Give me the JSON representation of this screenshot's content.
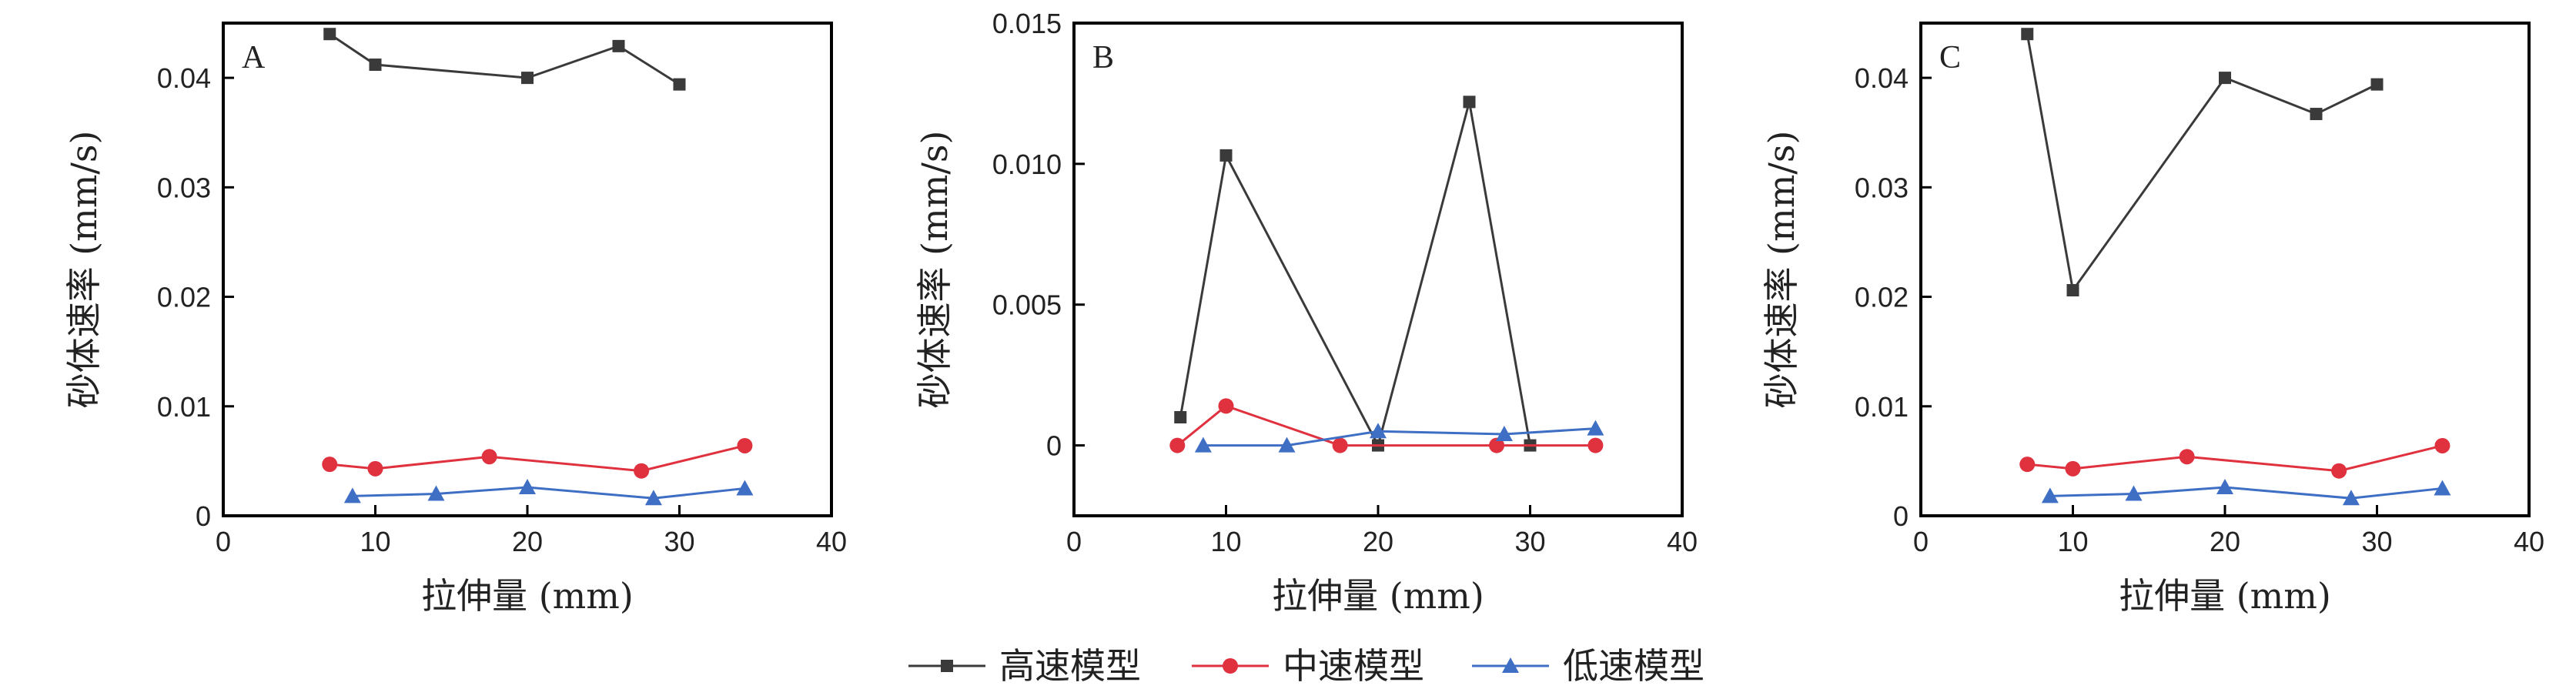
{
  "colors": {
    "high": "#3a3a3a",
    "mid": "#e0313f",
    "low": "#3f6fc4",
    "axis": "#000000"
  },
  "legend": [
    {
      "key": "high",
      "label": "高速模型",
      "marker": "square"
    },
    {
      "key": "mid",
      "label": "中速模型",
      "marker": "circle"
    },
    {
      "key": "low",
      "label": "低速模型",
      "marker": "triangle"
    }
  ],
  "chart_data": [
    {
      "type": "line",
      "panel_label": "A",
      "xlabel": "拉伸量 (mm)",
      "ylabel": "砂体速率 (mm/s)",
      "xlim": [
        0,
        40
      ],
      "ylim": [
        0,
        0.045
      ],
      "xticks": [
        0,
        10,
        20,
        30,
        40
      ],
      "yticks": [
        0,
        0.01,
        0.02,
        0.03,
        0.04
      ],
      "ytick_labels": [
        "0",
        "0.01",
        "0.02",
        "0.03",
        "0.04"
      ],
      "series": [
        {
          "key": "high",
          "x": [
            7,
            10,
            20,
            26,
            30
          ],
          "y": [
            0.044,
            0.0412,
            0.04,
            0.0429,
            0.0394
          ]
        },
        {
          "key": "mid",
          "x": [
            7,
            10,
            17.5,
            27.5,
            34.3
          ],
          "y": [
            0.0047,
            0.0043,
            0.0054,
            0.0041,
            0.0064
          ]
        },
        {
          "key": "low",
          "x": [
            8.5,
            14,
            20,
            28.3,
            34.3
          ],
          "y": [
            0.0018,
            0.002,
            0.0026,
            0.0016,
            0.0025
          ]
        }
      ]
    },
    {
      "type": "line",
      "panel_label": "B",
      "xlabel": "拉伸量 (mm)",
      "ylabel": "砂体速率 (mm/s)",
      "xlim": [
        0,
        40
      ],
      "ylim": [
        -0.0025,
        0.015
      ],
      "xticks": [
        0,
        10,
        20,
        30,
        40
      ],
      "yticks": [
        0,
        0.005,
        0.01,
        0.015
      ],
      "ytick_labels": [
        "0",
        "0.005",
        "0.010",
        "0.015"
      ],
      "series": [
        {
          "key": "high",
          "x": [
            7,
            10,
            20,
            26,
            30
          ],
          "y": [
            0.001,
            0.0103,
            0.0,
            0.0122,
            0.0
          ]
        },
        {
          "key": "mid",
          "x": [
            6.8,
            10,
            17.5,
            27.8,
            34.3
          ],
          "y": [
            0.0,
            0.0014,
            0.0,
            0.0,
            0.0
          ]
        },
        {
          "key": "low",
          "x": [
            8.5,
            14,
            20,
            28.3,
            34.3
          ],
          "y": [
            0.0,
            0.0,
            0.0005,
            0.0004,
            0.0006
          ]
        }
      ]
    },
    {
      "type": "line",
      "panel_label": "C",
      "xlabel": "拉伸量 (mm)",
      "ylabel": "砂体速率 (mm/s)",
      "xlim": [
        0,
        40
      ],
      "ylim": [
        0,
        0.045
      ],
      "xticks": [
        0,
        10,
        20,
        30,
        40
      ],
      "yticks": [
        0,
        0.01,
        0.02,
        0.03,
        0.04
      ],
      "ytick_labels": [
        "0",
        "0.01",
        "0.02",
        "0.03",
        "0.04"
      ],
      "series": [
        {
          "key": "high",
          "x": [
            7,
            10,
            20,
            26,
            30
          ],
          "y": [
            0.044,
            0.0206,
            0.04,
            0.0367,
            0.0394
          ]
        },
        {
          "key": "mid",
          "x": [
            7,
            10,
            17.5,
            27.5,
            34.3
          ],
          "y": [
            0.0047,
            0.0043,
            0.0054,
            0.0041,
            0.0064
          ]
        },
        {
          "key": "low",
          "x": [
            8.5,
            14,
            20,
            28.3,
            34.3
          ],
          "y": [
            0.0018,
            0.002,
            0.0026,
            0.0016,
            0.0025
          ]
        }
      ]
    }
  ]
}
